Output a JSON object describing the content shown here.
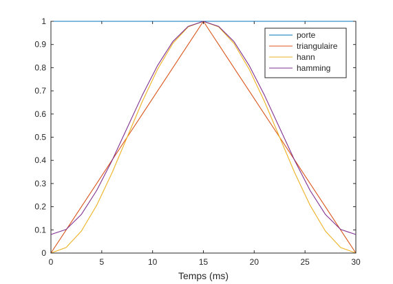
{
  "chart_data": {
    "type": "line",
    "title": "",
    "xlabel": "Temps (ms)",
    "ylabel": "",
    "xlim": [
      0,
      30
    ],
    "ylim": [
      0,
      1
    ],
    "xticks": [
      0,
      5,
      10,
      15,
      20,
      25,
      30
    ],
    "yticks": [
      0,
      0.1,
      0.2,
      0.3,
      0.4,
      0.5,
      0.6,
      0.7,
      0.8,
      0.9,
      1
    ],
    "grid": false,
    "legend": "top-right",
    "x": [
      0,
      1.5,
      3,
      4.5,
      6,
      7.5,
      9,
      10.5,
      12,
      13.5,
      15,
      16.5,
      18,
      19.5,
      21,
      22.5,
      24,
      25.5,
      27,
      28.5,
      30
    ],
    "series": [
      {
        "name": "porte",
        "color": "#0072bd",
        "values": [
          1,
          1,
          1,
          1,
          1,
          1,
          1,
          1,
          1,
          1,
          1,
          1,
          1,
          1,
          1,
          1,
          1,
          1,
          1,
          1,
          1
        ]
      },
      {
        "name": "triangulaire",
        "color": "#d95319",
        "values": [
          0,
          0.1,
          0.2,
          0.3,
          0.4,
          0.5,
          0.6,
          0.7,
          0.8,
          0.9,
          1,
          0.9,
          0.8,
          0.7,
          0.6,
          0.5,
          0.4,
          0.3,
          0.2,
          0.1,
          0
        ]
      },
      {
        "name": "hann",
        "color": "#edb120",
        "values": [
          0,
          0.024,
          0.095,
          0.206,
          0.345,
          0.5,
          0.655,
          0.794,
          0.905,
          0.976,
          1,
          0.976,
          0.905,
          0.794,
          0.655,
          0.5,
          0.345,
          0.206,
          0.095,
          0.024,
          0
        ]
      },
      {
        "name": "hamming",
        "color": "#7e2f8e",
        "values": [
          0.08,
          0.102,
          0.167,
          0.27,
          0.398,
          0.54,
          0.682,
          0.81,
          0.913,
          0.978,
          1,
          0.978,
          0.913,
          0.81,
          0.682,
          0.54,
          0.398,
          0.27,
          0.167,
          0.102,
          0.08
        ]
      }
    ]
  }
}
